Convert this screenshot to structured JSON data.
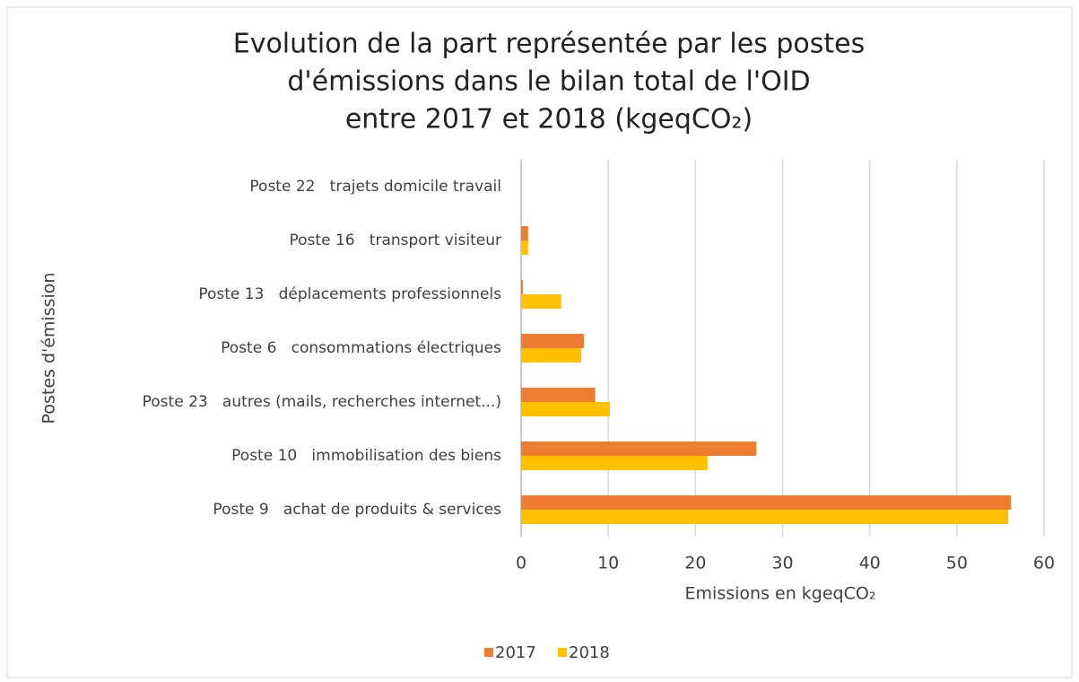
{
  "chart_data": {
    "type": "barh",
    "title": [
      "Evolution de la part représentée par les postes",
      "d'émissions dans le bilan total de l'OID",
      "entre 2017 et 2018 (kgeqCO₂)"
    ],
    "x_label": "Emissions en kgeqCO₂",
    "y_label": "Postes d'émission",
    "categories": [
      "Poste 22   trajets domicile travail",
      "Poste 16   transport visiteur",
      "Poste 13   déplacements professionnels",
      "Poste 6   consommations électriques",
      "Poste 23   autres (mails, recherches internet...)",
      "Poste 10   immobilisation des biens",
      "Poste 9   achat de produits & services"
    ],
    "series": [
      {
        "name": "2017",
        "color": "#ed7d31",
        "values": [
          0,
          0.8,
          0.2,
          7.2,
          8.5,
          27,
          56.2
        ]
      },
      {
        "name": "2018",
        "color": "#ffc000",
        "values": [
          0,
          0.8,
          4.6,
          6.9,
          10.2,
          21.4,
          55.9
        ]
      }
    ],
    "xlim": [
      0,
      60
    ],
    "xticks": [
      0,
      10,
      20,
      30,
      40,
      50,
      60
    ],
    "grid": true,
    "legend": "bottom"
  }
}
